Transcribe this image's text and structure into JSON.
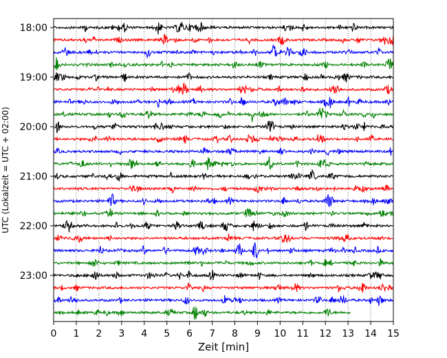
{
  "chart_data": {
    "type": "line",
    "title": "",
    "xlabel": "Zeit  [min]",
    "ylabel": "UTC (Lokalzeit = UTC + 02:00)",
    "xlim": [
      0,
      15
    ],
    "xticks": [
      0,
      1,
      2,
      3,
      4,
      5,
      6,
      7,
      8,
      9,
      10,
      11,
      12,
      13,
      14,
      15
    ],
    "xtick_labels": [
      "0",
      "1",
      "2",
      "3",
      "4",
      "5",
      "6",
      "7",
      "8",
      "9",
      "10",
      "11",
      "12",
      "13",
      "14",
      "15"
    ],
    "yticks": [
      {
        "row": 0,
        "label": "18:00"
      },
      {
        "row": 4,
        "label": "19:00"
      },
      {
        "row": 8,
        "label": "20:00"
      },
      {
        "row": 12,
        "label": "21:00"
      },
      {
        "row": 16,
        "label": "22:00"
      },
      {
        "row": 20,
        "label": "23:00"
      }
    ],
    "grid": "vertical dotted",
    "line_colors": [
      "#000000",
      "#ff0000",
      "#0000ff",
      "#008000"
    ],
    "rows": [
      {
        "start": "18:00",
        "end_min": 15
      },
      {
        "start": "18:15",
        "end_min": 15
      },
      {
        "start": "18:30",
        "end_min": 15
      },
      {
        "start": "18:45",
        "end_min": 15
      },
      {
        "start": "19:00",
        "end_min": 15
      },
      {
        "start": "19:15",
        "end_min": 15
      },
      {
        "start": "19:30",
        "end_min": 15
      },
      {
        "start": "19:45",
        "end_min": 15
      },
      {
        "start": "20:00",
        "end_min": 15
      },
      {
        "start": "20:15",
        "end_min": 15
      },
      {
        "start": "20:30",
        "end_min": 15
      },
      {
        "start": "20:45",
        "end_min": 15
      },
      {
        "start": "21:00",
        "end_min": 15
      },
      {
        "start": "21:15",
        "end_min": 15
      },
      {
        "start": "21:30",
        "end_min": 15
      },
      {
        "start": "21:45",
        "end_min": 15
      },
      {
        "start": "22:00",
        "end_min": 15
      },
      {
        "start": "22:15",
        "end_min": 15
      },
      {
        "start": "22:30",
        "end_min": 15
      },
      {
        "start": "22:45",
        "end_min": 15
      },
      {
        "start": "23:00",
        "end_min": 15
      },
      {
        "start": "23:15",
        "end_min": 15
      },
      {
        "start": "23:30",
        "end_min": 15
      },
      {
        "start": "23:45",
        "end_min": 13.1
      }
    ]
  }
}
